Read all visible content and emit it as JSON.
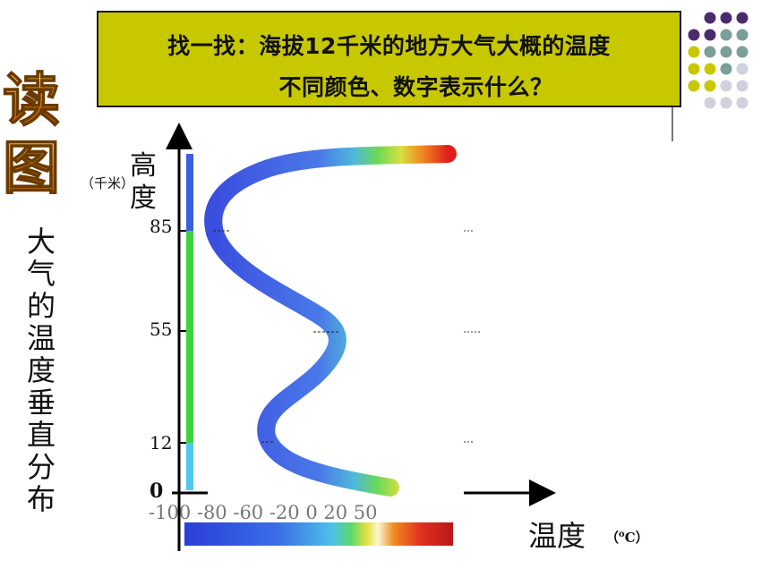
{
  "question": {
    "line1": "找一找：海拔12千米的地方大气大概的温度",
    "line2": "不同颜色、数字表示什么？"
  },
  "badge": {
    "text": "读图"
  },
  "side_title": {
    "text": "大气的温度垂直分布"
  },
  "y_axis": {
    "label": "高度",
    "unit": "（千米）",
    "ticks": [
      "85",
      "55",
      "12"
    ],
    "zero": "0"
  },
  "x_axis": {
    "label": "温度",
    "unit_sup": "o",
    "unit_letter": "C",
    "tick_text": "-100 -80 -60 -20 0 20 50"
  },
  "colors": {
    "question_bg": "#c8c800",
    "band_blue": "#3a5fe0",
    "band_green": "#3fd23f",
    "band_lightblue": "#4fc8f0",
    "dot_purple": "#4b2a6e",
    "dot_teal": "#7a9e9a",
    "dot_olive": "#c8c800",
    "dot_gray": "#cfd2dd"
  },
  "chart_data": {
    "type": "line",
    "title": "",
    "xlabel": "温度",
    "ylabel": "高度",
    "y_ticks": [
      0,
      12,
      55,
      85
    ],
    "x_ticks": [
      -100,
      -80,
      -60,
      -20,
      0,
      20,
      50
    ],
    "layers": [
      {
        "from": 0,
        "to": 12,
        "color": "#4fc8f0"
      },
      {
        "from": 12,
        "to": 85,
        "color": "#3fd23f"
      },
      {
        "from": 85,
        "to": 130,
        "color": "#3a5fe0"
      }
    ]
  }
}
